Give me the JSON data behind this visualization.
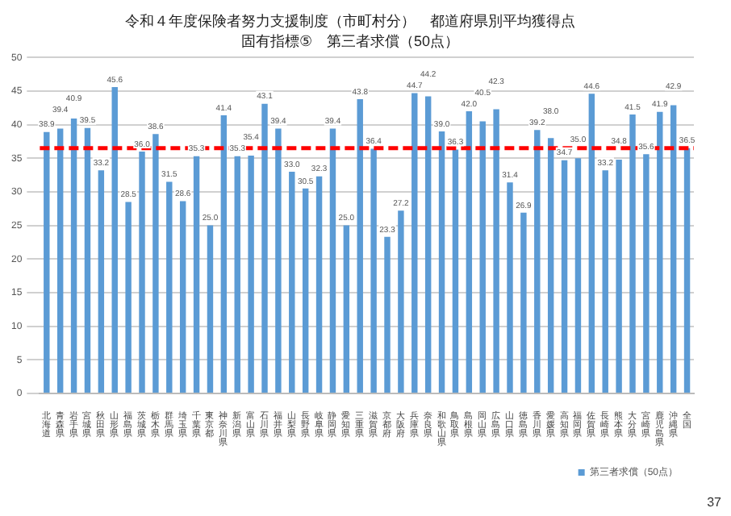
{
  "chart_data": {
    "type": "bar",
    "title": "令和４年度保険者努力支援制度（市町村分）　都道府県別平均獲得点",
    "subtitle": "固有指標⑤　第三者求償（50点）",
    "categories": [
      "北海道",
      "青森県",
      "岩手県",
      "宮城県",
      "秋田県",
      "山形県",
      "福島県",
      "茨城県",
      "栃木県",
      "群馬県",
      "埼玉県",
      "千葉県",
      "東京都",
      "神奈川県",
      "新潟県",
      "富山県",
      "石川県",
      "福井県",
      "山梨県",
      "長野県",
      "岐阜県",
      "静岡県",
      "愛知県",
      "三重県",
      "滋賀県",
      "京都府",
      "大阪府",
      "兵庫県",
      "奈良県",
      "和歌山県",
      "鳥取県",
      "島根県",
      "岡山県",
      "広島県",
      "山口県",
      "徳島県",
      "香川県",
      "愛媛県",
      "高知県",
      "福岡県",
      "佐賀県",
      "長崎県",
      "熊本県",
      "大分県",
      "宮崎県",
      "鹿児島県",
      "沖縄県",
      "全国"
    ],
    "series": [
      {
        "name": "第三者求償（50点）",
        "color": "#5b9bd5",
        "values": [
          38.9,
          39.4,
          40.9,
          39.5,
          33.2,
          45.6,
          28.5,
          36.0,
          38.6,
          31.5,
          28.6,
          35.3,
          25.0,
          41.4,
          35.3,
          35.4,
          43.1,
          39.4,
          33.0,
          30.5,
          32.3,
          39.4,
          25.0,
          43.8,
          36.4,
          23.3,
          27.2,
          44.7,
          44.2,
          39.0,
          36.3,
          42.0,
          40.5,
          42.3,
          31.4,
          26.9,
          39.2,
          38.0,
          34.7,
          35.0,
          44.6,
          33.2,
          34.8,
          41.5,
          35.6,
          41.9,
          42.9,
          36.5
        ]
      }
    ],
    "value_labels": [
      "38.9",
      "39.4",
      "40.9",
      "39.5",
      "33.2",
      "45.6",
      "28.5",
      "36.0",
      "38.6",
      "31.5",
      "28.6",
      "35.3",
      "25.0",
      "41.4",
      "35.3",
      "35.4",
      "43.1",
      "39.4",
      "33.0",
      "30.5",
      "32.3",
      "39.4",
      "25.0",
      "43.8",
      "36.4",
      "23.3",
      "27.2",
      "44.7",
      "44.2",
      "39.0",
      "36.3",
      "42.0",
      "40.5",
      "42.3",
      "31.4",
      "26.9",
      "39.2",
      "38.0",
      "34.7",
      "35.0",
      "44.6",
      "33.2",
      "34.8",
      "41.5",
      "35.6",
      "41.9",
      "42.9",
      "36.5"
    ],
    "ylim": [
      0,
      50
    ],
    "yticks": [
      0,
      5,
      10,
      15,
      20,
      25,
      30,
      35,
      40,
      45,
      50
    ],
    "grid": "y",
    "legend": "bottom",
    "ref_lines": [
      {
        "axis": "y",
        "value": 36.5,
        "color": "#ff0000",
        "line_style": "dashed"
      }
    ],
    "annotations": [
      "37"
    ]
  }
}
